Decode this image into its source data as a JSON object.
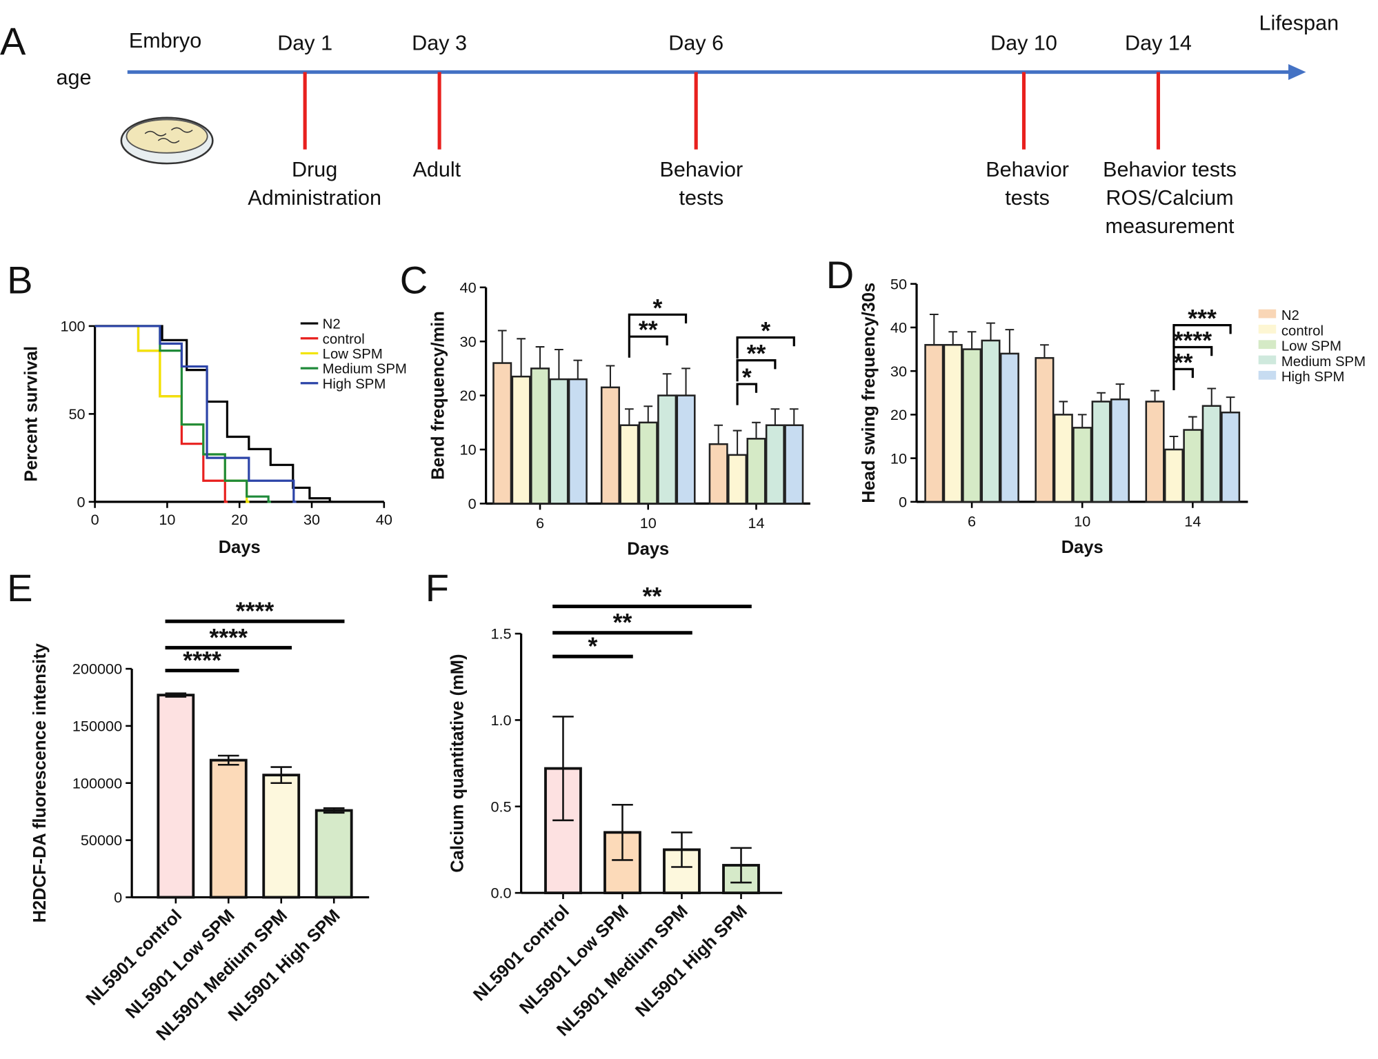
{
  "chart_data": [
    {
      "type": "timeline",
      "panel": "A",
      "axis_label": "age",
      "start_label": "Embryo",
      "end_label": "Lifespan",
      "events": [
        {
          "label": "Day 1",
          "notes": [
            "Drug",
            "Administration"
          ]
        },
        {
          "label": "Day 3",
          "notes": [
            "Adult"
          ]
        },
        {
          "label": "Day 6",
          "notes": [
            "Behavior",
            "tests"
          ]
        },
        {
          "label": "Day 10",
          "notes": [
            "Behavior",
            "tests"
          ]
        },
        {
          "label": "Day 14",
          "notes": [
            "Behavior tests",
            "ROS/Calcium",
            "measurement"
          ]
        }
      ]
    },
    {
      "type": "step",
      "panel": "B",
      "x_label": "Days",
      "y_label": "Percent survival",
      "xlim": [
        0,
        40
      ],
      "xticks": [
        0,
        10,
        20,
        30,
        40
      ],
      "ylim": [
        0,
        100
      ],
      "yticks": [
        0,
        50,
        100
      ],
      "series": [
        {
          "name": "N2",
          "color": "#000000",
          "x": [
            0,
            9.3,
            12.7,
            15.5,
            18.3,
            21.3,
            24.3,
            27.4,
            29.7,
            32.5
          ],
          "values": [
            100,
            92,
            75,
            57,
            37,
            30,
            21,
            8,
            2,
            0
          ]
        },
        {
          "name": "control",
          "color": "#e8201e",
          "x": [
            0,
            6,
            9,
            12,
            15,
            18
          ],
          "values": [
            100,
            86,
            60,
            33,
            12,
            0
          ]
        },
        {
          "name": "Low SPM",
          "color": "#f2e400",
          "x": [
            0,
            6,
            9,
            12,
            15,
            18,
            21
          ],
          "values": [
            100,
            86,
            60,
            44,
            27,
            12,
            0
          ]
        },
        {
          "name": "Medium SPM",
          "color": "#1f8a3a",
          "x": [
            0,
            9,
            12,
            15,
            18,
            21,
            24
          ],
          "values": [
            100,
            86,
            44,
            27,
            12,
            3,
            0
          ]
        },
        {
          "name": "High SPM",
          "color": "#2c44a8",
          "x": [
            0,
            9,
            12,
            15.5,
            21.3,
            27.5
          ],
          "values": [
            100,
            90,
            77,
            25,
            12,
            0
          ]
        }
      ]
    },
    {
      "type": "grouped_bar",
      "panel": "C",
      "x_label": "Days",
      "y_label": "Bend frequency/min",
      "categories": [
        "6",
        "10",
        "14"
      ],
      "ylim": [
        0,
        40
      ],
      "yticks": [
        0,
        10,
        20,
        30,
        40
      ],
      "series": [
        {
          "color": "#f9d6b6",
          "values": [
            26,
            21.5,
            11
          ],
          "errors": [
            6,
            4,
            3.5
          ]
        },
        {
          "color": "#fdf6d3",
          "values": [
            23.5,
            14.5,
            9
          ],
          "errors": [
            7,
            3,
            4.5
          ]
        },
        {
          "color": "#d5eac6",
          "values": [
            25,
            15,
            12
          ],
          "errors": [
            4,
            3,
            3
          ]
        },
        {
          "color": "#cfe9dd",
          "values": [
            23,
            20,
            14.5
          ],
          "errors": [
            5.5,
            4,
            3
          ]
        },
        {
          "color": "#c7dcf1",
          "values": [
            23,
            20,
            14.5
          ],
          "errors": [
            3.5,
            5,
            3
          ]
        }
      ],
      "annotations": [
        {
          "text": "*",
          "group": 1,
          "from": 1,
          "to": 4
        },
        {
          "text": "**",
          "group": 1,
          "from": 1,
          "to": 3
        },
        {
          "text": "*",
          "group": 2,
          "from": 1,
          "to": 4
        },
        {
          "text": "**",
          "group": 2,
          "from": 1,
          "to": 3
        },
        {
          "text": "*",
          "group": 2,
          "from": 1,
          "to": 2
        }
      ]
    },
    {
      "type": "grouped_bar",
      "panel": "D",
      "x_label": "Days",
      "y_label": "Head swing frequency/30s",
      "categories": [
        "6",
        "10",
        "14"
      ],
      "ylim": [
        0,
        50
      ],
      "yticks": [
        0,
        10,
        20,
        30,
        40,
        50
      ],
      "series": [
        {
          "name": "N2",
          "color": "#f9d6b6",
          "values": [
            36,
            33,
            23
          ],
          "errors": [
            7,
            3,
            2.5
          ]
        },
        {
          "name": "control",
          "color": "#fdf6d3",
          "values": [
            36,
            20,
            12
          ],
          "errors": [
            3,
            3,
            3
          ]
        },
        {
          "name": "Low SPM",
          "color": "#d5eac6",
          "values": [
            35,
            17,
            16.5
          ],
          "errors": [
            4,
            3,
            3
          ]
        },
        {
          "name": "Medium SPM",
          "color": "#cfe9dd",
          "values": [
            37,
            23,
            22
          ],
          "errors": [
            4,
            2,
            4
          ]
        },
        {
          "name": "High SPM",
          "color": "#c7dcf1",
          "values": [
            34,
            23.5,
            20.5
          ],
          "errors": [
            5.5,
            3.5,
            3.5
          ]
        }
      ],
      "annotations": [
        {
          "text": "***",
          "group": 2,
          "from": 1,
          "to": 4
        },
        {
          "text": "****",
          "group": 2,
          "from": 1,
          "to": 3
        },
        {
          "text": "**",
          "group": 2,
          "from": 1,
          "to": 2
        }
      ]
    },
    {
      "type": "bar",
      "panel": "E",
      "y_label": "H2DCF-DA fluorescence intensity",
      "categories": [
        "NL5901 control",
        "NL5901 Low SPM",
        "NL5901 Medium SPM",
        "NL5901 High SPM"
      ],
      "values": [
        177000,
        120000,
        107000,
        76000
      ],
      "errors": [
        1500,
        4000,
        7000,
        2000
      ],
      "colors": [
        "#fde1e1",
        "#fcdab9",
        "#fdf8dd",
        "#d6eac9"
      ],
      "ylim": [
        0,
        200000
      ],
      "yticks": [
        0,
        50000,
        100000,
        150000,
        200000
      ],
      "annotations": [
        {
          "text": "****",
          "from": 0,
          "to": 1
        },
        {
          "text": "****",
          "from": 0,
          "to": 2
        },
        {
          "text": "****",
          "from": 0,
          "to": 3
        }
      ]
    },
    {
      "type": "bar",
      "panel": "F",
      "y_label": "Calcium quantitative (mM)",
      "categories": [
        "NL5901 control",
        "NL5901 Low SPM",
        "NL5901 Medium SPM",
        "NL5901 High SPM"
      ],
      "values": [
        0.72,
        0.35,
        0.25,
        0.16
      ],
      "errors": [
        0.3,
        0.16,
        0.1,
        0.1
      ],
      "colors": [
        "#fde1e1",
        "#fcdab9",
        "#fdf8dd",
        "#d6eac9"
      ],
      "ylim": [
        0,
        1.5
      ],
      "yticks": [
        {
          "value": 0,
          "label": "0.0"
        },
        {
          "value": 0.5,
          "label": "0.5"
        },
        {
          "value": 1,
          "label": "1.0"
        },
        {
          "value": 1.5,
          "label": "1.5"
        }
      ],
      "annotations": [
        {
          "text": "*",
          "from": 0,
          "to": 1
        },
        {
          "text": "**",
          "from": 0,
          "to": 2
        },
        {
          "text": "**",
          "from": 0,
          "to": 3
        }
      ]
    }
  ]
}
